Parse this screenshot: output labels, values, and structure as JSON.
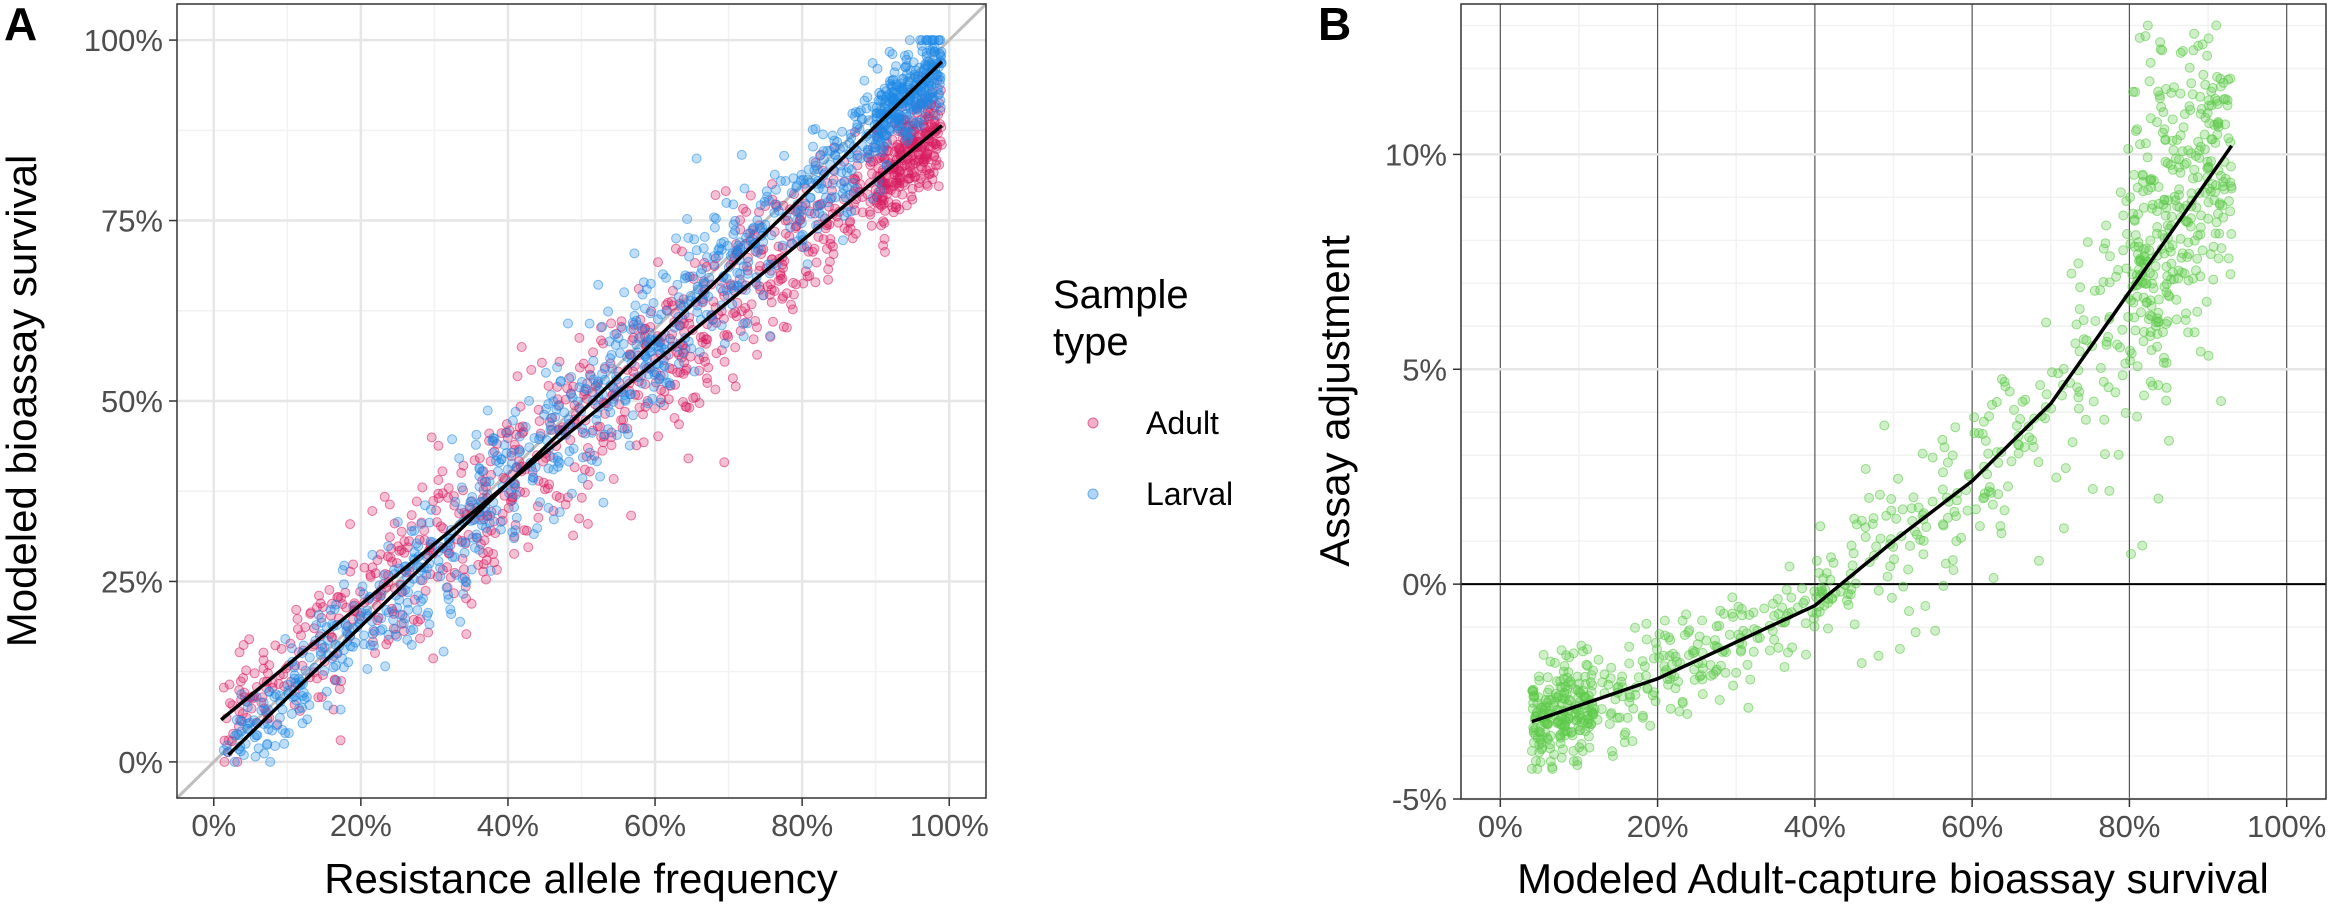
{
  "figure": {
    "panels": [
      "A",
      "B"
    ]
  },
  "colors": {
    "adult": "#d81b60",
    "larval": "#1e88e5",
    "panel_b_points": "#5ec94a",
    "grid_major": "#e6e6e6",
    "grid_minor": "#f2f2f2",
    "identity_line": "#bfbfbf",
    "fit_line": "#000000"
  },
  "chart_data": [
    {
      "panel": "A",
      "type": "scatter",
      "title": "",
      "xlabel": "Resistance allele frequency",
      "ylabel": "Modeled bioassay survival",
      "xlim": [
        -0.05,
        1.05
      ],
      "ylim": [
        -0.05,
        1.05
      ],
      "x_ticks": [
        0,
        0.2,
        0.4,
        0.6,
        0.8,
        1.0
      ],
      "x_tick_labels": [
        "0%",
        "20%",
        "40%",
        "60%",
        "80%",
        "100%"
      ],
      "y_ticks": [
        0,
        0.25,
        0.5,
        0.75,
        1.0
      ],
      "y_tick_labels": [
        "0%",
        "25%",
        "50%",
        "75%",
        "100%"
      ],
      "grid": true,
      "reference_line": {
        "name": "identity",
        "slope": 1,
        "intercept": 0
      },
      "legend": {
        "title": "Sample type",
        "title_lines": [
          "Sample",
          "type"
        ],
        "placement": "right",
        "entries": [
          "Adult",
          "Larval"
        ]
      },
      "series": [
        {
          "name": "Adult",
          "point_count_approx": 1100,
          "x_range": [
            0.01,
            0.99
          ],
          "fit": {
            "type": "linear",
            "intercept": 0.05,
            "slope": 0.84,
            "x_range": [
              0.01,
              0.99
            ]
          },
          "noise_sd": 0.045
        },
        {
          "name": "Larval",
          "point_count_approx": 1100,
          "x_range": [
            0.01,
            0.99
          ],
          "fit": {
            "type": "linear",
            "intercept": -0.01,
            "slope": 0.99,
            "x_range": [
              0.02,
              0.99
            ]
          },
          "noise_sd": 0.04
        }
      ]
    },
    {
      "panel": "B",
      "type": "scatter",
      "title": "",
      "xlabel": "Modeled Adult-capture bioassay survival",
      "ylabel": "Assay adjustment",
      "xlim": [
        -0.05,
        1.05
      ],
      "ylim": [
        -0.05,
        0.135
      ],
      "x_ticks": [
        0,
        0.2,
        0.4,
        0.6,
        0.8,
        1.0
      ],
      "x_tick_labels": [
        "0%",
        "20%",
        "40%",
        "60%",
        "80%",
        "100%"
      ],
      "y_ticks": [
        -0.05,
        0,
        0.05,
        0.1
      ],
      "y_tick_labels": [
        "-5%",
        "0%",
        "5%",
        "10%"
      ],
      "grid": true,
      "reference_line": {
        "name": "zero",
        "y": 0
      },
      "series": [
        {
          "name": "Assay adjustment",
          "point_count_approx": 1000,
          "x_range": [
            0.04,
            0.93
          ],
          "fit": {
            "type": "quadratic",
            "points": [
              [
                0.04,
                -0.032
              ],
              [
                0.2,
                -0.022
              ],
              [
                0.4,
                -0.005
              ],
              [
                0.5,
                0.01
              ],
              [
                0.6,
                0.024
              ],
              [
                0.7,
                0.042
              ],
              [
                0.8,
                0.068
              ],
              [
                0.93,
                0.102
              ]
            ]
          }
        }
      ]
    }
  ]
}
